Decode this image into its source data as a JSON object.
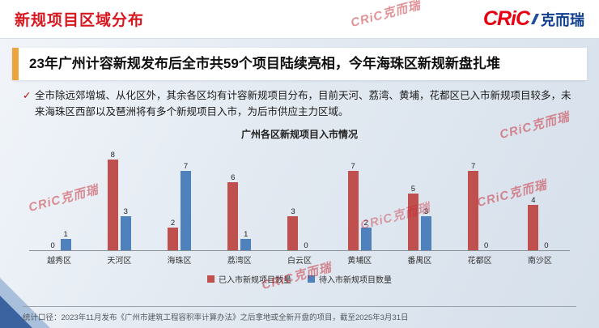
{
  "header": {
    "title": "新规项目区域分布",
    "logo": {
      "cric": "CRiC",
      "chinese": "克而瑞"
    }
  },
  "headline": "23年广州计容新规发布后全市共59个项目陆续亮相，今年海珠区新规新盘扎堆",
  "bullet": {
    "marker": "✓",
    "text": "全市除远郊增城、从化区外，其余各区均有计容新规项目分布，目前天河、荔湾、黄埔，花都区已入市新规项目较多，未来海珠区西部以及琶洲将有多个新规项目入市，为后市供应主力区域。"
  },
  "chart_data": {
    "type": "bar",
    "title": "广州各区新规项目入市情况",
    "categories": [
      "越秀区",
      "天河区",
      "海珠区",
      "荔湾区",
      "白云区",
      "黄埔区",
      "番禺区",
      "花都区",
      "南沙区"
    ],
    "series": [
      {
        "name": "已入市新规项目数量",
        "color": "#c0504d",
        "values": [
          0,
          8,
          2,
          6,
          3,
          7,
          5,
          7,
          4
        ]
      },
      {
        "name": "待入市新规项目数量",
        "color": "#4f81bd",
        "values": [
          1,
          3,
          7,
          1,
          0,
          2,
          3,
          0,
          0
        ]
      }
    ],
    "ylim": [
      0,
      9
    ],
    "grid": false,
    "legend_position": "bottom",
    "value_labels": true
  },
  "footer": {
    "text": "统计口径：2023年11月发布《广州市建筑工程容积率计算办法》之后拿地或全新开盘的项目，截至2025年3月31日"
  },
  "watermark_text": "CRiC克而瑞"
}
